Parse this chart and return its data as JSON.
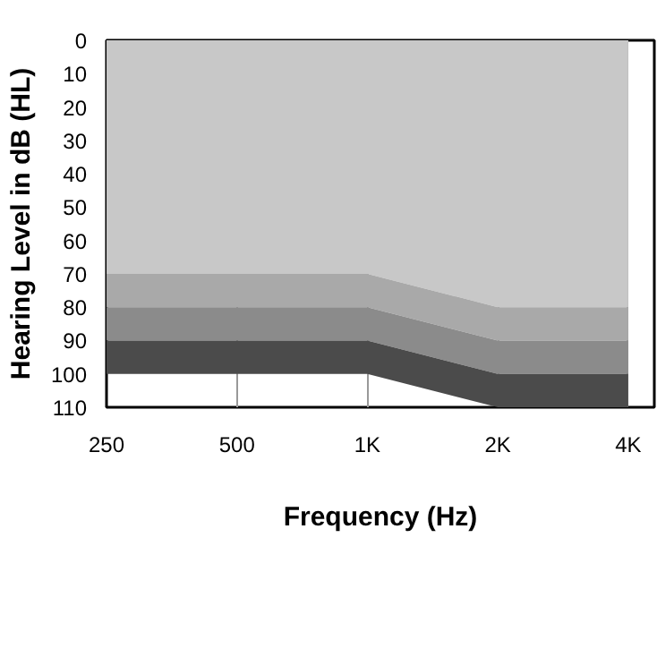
{
  "chart_data": {
    "type": "area",
    "stacked": true,
    "xlabel": "Frequency (Hz)",
    "ylabel": "Hearing Level in dB (HL)",
    "categories": [
      "250",
      "500",
      "1K",
      "2K",
      "4K"
    ],
    "series": [
      {
        "color": "#c8c8c8",
        "values": [
          70,
          70,
          70,
          80,
          80
        ]
      },
      {
        "color": "#a9a9a9",
        "values": [
          10,
          10,
          10,
          10,
          10
        ]
      },
      {
        "color": "#8b8b8b",
        "values": [
          10,
          10,
          10,
          10,
          10
        ]
      },
      {
        "color": "#4b4b4b",
        "values": [
          10,
          10,
          10,
          10,
          10
        ]
      }
    ],
    "ylim": [
      110,
      0
    ],
    "yticks": [
      0,
      10,
      20,
      30,
      40,
      50,
      60,
      70,
      80,
      90,
      100,
      110
    ],
    "grid": "x"
  }
}
